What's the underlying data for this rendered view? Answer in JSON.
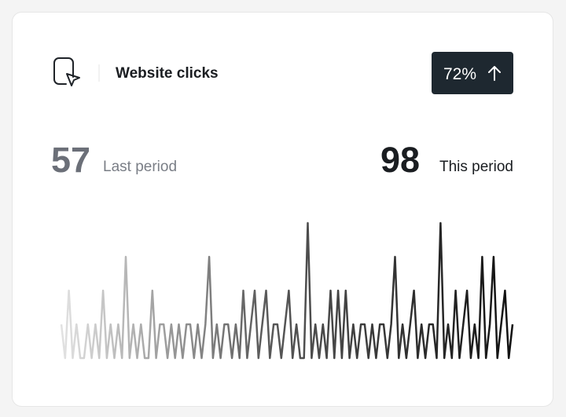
{
  "header": {
    "title": "Website clicks",
    "badge": "72%"
  },
  "stats": {
    "last": {
      "value": 57,
      "label": "Last period"
    },
    "current": {
      "value": 98,
      "label": "This period"
    }
  },
  "chart_data": {
    "type": "line",
    "values": [
      1,
      0,
      2,
      0,
      1,
      0,
      0,
      1,
      0,
      1,
      0,
      2,
      0,
      1,
      0,
      1,
      0,
      3,
      0,
      1,
      0,
      1,
      0,
      0,
      2,
      0,
      1,
      1,
      0,
      1,
      0,
      1,
      0,
      1,
      1,
      0,
      1,
      0,
      1,
      3,
      0,
      1,
      0,
      1,
      1,
      0,
      1,
      0,
      2,
      0,
      1,
      2,
      0,
      1,
      2,
      0,
      1,
      1,
      0,
      1,
      2,
      0,
      1,
      0,
      0,
      4,
      0,
      1,
      0,
      1,
      0,
      2,
      0,
      2,
      0,
      2,
      0,
      1,
      0,
      1,
      1,
      0,
      1,
      0,
      1,
      1,
      0,
      1,
      3,
      0,
      1,
      0,
      1,
      2,
      0,
      1,
      0,
      1,
      1,
      0,
      4,
      0,
      1,
      0,
      2,
      0,
      1,
      2,
      0,
      1,
      0,
      3,
      0,
      1,
      3,
      0,
      1,
      2,
      0,
      1
    ]
  }
}
